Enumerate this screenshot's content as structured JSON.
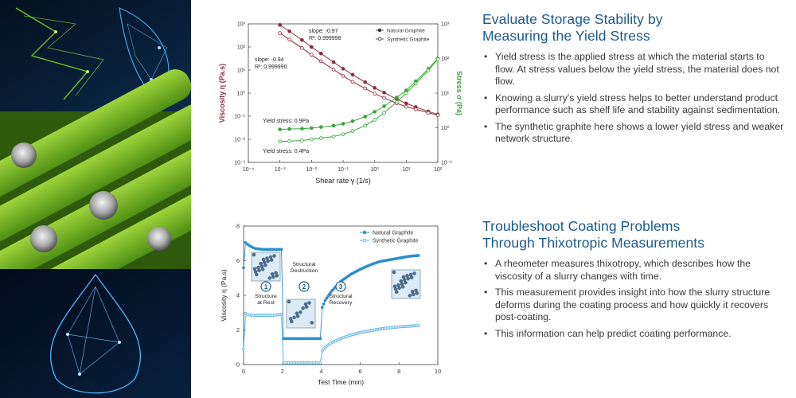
{
  "section1": {
    "title_line1": "Evaluate Storage Stability by",
    "title_line2": "Measuring the Yield Stress",
    "bullets": [
      "Yield stress is the applied stress at which the material starts to flow. At stress values below the yield stress, the material does not flow.",
      "Knowing a slurry's yield stress helps to better understand product performance such as shelf life and stability against sedimentation.",
      "The synthetic graphite here shows a lower yield stress and weaker network structure."
    ]
  },
  "section2": {
    "title_line1": "Troubleshoot Coating Problems",
    "title_line2": "Through Thixotropic Measurements",
    "bullets": [
      "A rheometer measures thixotropy, which describes how the viscosity of a slurry changes with time.",
      "This measurement provides insight into how the slurry structure deforms during the coating process and how quickly it recovers post-coating.",
      "This information can help predict coating performance."
    ]
  },
  "colors": {
    "natural": "#8c2a3c",
    "synthetic_green": "#3aa63a",
    "natural_blue": "#2b8fd0",
    "synthetic_blue": "#49a8dc",
    "heading": "#1d5a8a"
  },
  "chart_data": [
    {
      "type": "line",
      "xlabel": "Shear rate γ (1/s)",
      "ylabel_left": "Viscosity η (Pa.s)",
      "ylabel_right": "Stress σ (Pa)",
      "x_scale": "log",
      "y_scale": "log",
      "xlim": [
        0.0001,
        100
      ],
      "ylim_left": [
        0.001,
        1000
      ],
      "ylim_right": [
        0.1,
        1000
      ],
      "x_ticks": [
        "10⁻⁴",
        "10⁻³",
        "10⁻²",
        "10⁻¹",
        "10⁰",
        "10¹",
        "10²"
      ],
      "y_ticks_left": [
        "10⁻³",
        "10⁻²",
        "10⁻¹",
        "10⁰",
        "10¹",
        "10²",
        "10³"
      ],
      "y_ticks_right": [
        "10⁻¹",
        "10⁰",
        "10¹",
        "10²",
        "10³"
      ],
      "legend": [
        "Natural Graphite",
        "Synthetic Graphite"
      ],
      "legend_position": "top-right",
      "annotations": {
        "slope_natural": "slope: -0.97",
        "r2_natural": "R²: 0.999998",
        "slope_synthetic": "slope: -0.94",
        "r2_synthetic": "R²: 0.999990",
        "yield_natural": "Yield stress: 0.9Pa",
        "yield_synthetic": "Yield stress: 0.4Pa"
      },
      "series": [
        {
          "name": "Natural Graphite",
          "axis": "left",
          "quantity": "viscosity",
          "x": [
            0.001,
            0.002,
            0.005,
            0.01,
            0.02,
            0.05,
            0.1,
            0.2,
            0.5,
            1,
            2,
            5,
            10,
            20,
            50,
            100
          ],
          "y": [
            900,
            480,
            200,
            100,
            52,
            22,
            11.5,
            6.3,
            3.0,
            1.7,
            1.05,
            0.55,
            0.36,
            0.25,
            0.16,
            0.12
          ]
        },
        {
          "name": "Synthetic Graphite",
          "axis": "left",
          "quantity": "viscosity",
          "x": [
            0.001,
            0.002,
            0.005,
            0.01,
            0.02,
            0.05,
            0.1,
            0.2,
            0.5,
            1,
            2,
            5,
            10,
            20,
            50,
            100
          ],
          "y": [
            400,
            210,
            90,
            46,
            24,
            10.5,
            5.6,
            3.1,
            1.6,
            0.95,
            0.62,
            0.36,
            0.26,
            0.2,
            0.14,
            0.11
          ]
        },
        {
          "name": "Natural Graphite",
          "axis": "right",
          "quantity": "stress",
          "x": [
            0.001,
            0.002,
            0.005,
            0.01,
            0.02,
            0.05,
            0.1,
            0.2,
            0.5,
            1,
            2,
            5,
            10,
            20,
            50,
            100
          ],
          "y": [
            0.9,
            0.92,
            0.94,
            0.98,
            1.05,
            1.15,
            1.3,
            1.55,
            2.1,
            2.9,
            4.2,
            7.5,
            12,
            22,
            50,
            100
          ]
        },
        {
          "name": "Synthetic Graphite",
          "axis": "right",
          "quantity": "stress",
          "x": [
            0.001,
            0.002,
            0.005,
            0.01,
            0.02,
            0.05,
            0.1,
            0.2,
            0.5,
            1,
            2,
            5,
            10,
            20,
            50,
            100
          ],
          "y": [
            0.4,
            0.41,
            0.43,
            0.46,
            0.5,
            0.56,
            0.65,
            0.8,
            1.15,
            1.7,
            2.7,
            5.6,
            10,
            19,
            45,
            95
          ]
        }
      ]
    },
    {
      "type": "line",
      "xlabel": "Test Time (min)",
      "ylabel": "Viscosity η (Pa.s)",
      "xlim": [
        0,
        10
      ],
      "ylim": [
        0,
        8
      ],
      "x_ticks": [
        0,
        2,
        4,
        6,
        8,
        10
      ],
      "y_ticks": [
        0,
        2,
        4,
        6,
        8
      ],
      "legend": [
        "Natural Graphite",
        "Synthetic Graphite"
      ],
      "legend_position": "top-right",
      "annotations": [
        {
          "step": "1",
          "label_line1": "Structure",
          "label_line2": "at Rest"
        },
        {
          "step": "2",
          "label_line1": "Structural",
          "label_line2": "Destruction"
        },
        {
          "step": "3",
          "label_line1": "Structural",
          "label_line2": "Recovery"
        }
      ],
      "series": [
        {
          "name": "Natural Graphite",
          "x": [
            0,
            0.1,
            0.2,
            0.4,
            0.6,
            1.0,
            1.5,
            1.95,
            2.05,
            2.5,
            3.0,
            3.5,
            3.95,
            4.05,
            4.2,
            4.5,
            5.0,
            5.5,
            6.0,
            6.5,
            7.0,
            7.5,
            8.0,
            8.5,
            9.0
          ],
          "y": [
            5.6,
            7.05,
            6.95,
            6.8,
            6.7,
            6.65,
            6.65,
            6.65,
            1.5,
            1.5,
            1.5,
            1.5,
            1.5,
            3.3,
            3.7,
            4.2,
            4.8,
            5.2,
            5.5,
            5.75,
            5.95,
            6.05,
            6.15,
            6.25,
            6.3
          ]
        },
        {
          "name": "Synthetic Graphite",
          "x": [
            0,
            0.1,
            0.2,
            0.4,
            0.6,
            1.0,
            1.5,
            1.95,
            2.05,
            2.5,
            3.0,
            3.5,
            3.95,
            4.05,
            4.2,
            4.5,
            5.0,
            5.5,
            6.0,
            6.5,
            7.0,
            7.5,
            8.0,
            8.5,
            9.0
          ],
          "y": [
            0.9,
            2.95,
            2.9,
            2.85,
            2.85,
            2.85,
            2.85,
            2.9,
            0.1,
            0.1,
            0.1,
            0.1,
            0.1,
            0.8,
            1.0,
            1.25,
            1.5,
            1.7,
            1.85,
            1.95,
            2.05,
            2.12,
            2.18,
            2.22,
            2.25
          ]
        }
      ]
    }
  ]
}
